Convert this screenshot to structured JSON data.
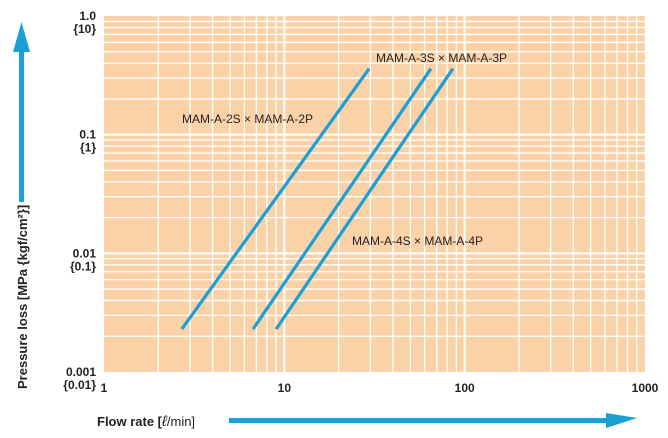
{
  "chart_data": {
    "type": "line",
    "x_scale": "log",
    "y_scale": "log",
    "xlim": [
      1,
      1000
    ],
    "ylim": [
      0.001,
      1.0
    ],
    "grid": true,
    "x_ticks": [
      "1",
      "10",
      "100",
      "1000"
    ],
    "y_ticks": [
      {
        "value": 1.0,
        "main": "1.0",
        "sub": "{10}"
      },
      {
        "value": 0.1,
        "main": "0.1",
        "sub": "{1}"
      },
      {
        "value": 0.01,
        "main": "0.01",
        "sub": "{0.1}"
      },
      {
        "value": 0.001,
        "main": "0.001",
        "sub": "{0.01}"
      }
    ],
    "xlabel": {
      "prefix": "Flow rate [",
      "unit_symbol": "ℓ",
      "unit_suffix": "/min]"
    },
    "ylabel": "Pressure loss [MPa {kgf/cm²}]",
    "series": [
      {
        "name": "MAM-A-2S × MAM-A-2P",
        "x": [
          2.7,
          29.5
        ],
        "y": [
          0.0023,
          0.36
        ]
      },
      {
        "name": "MAM-A-3S × MAM-A-3P",
        "x": [
          6.7,
          65
        ],
        "y": [
          0.0023,
          0.36
        ]
      },
      {
        "name": "MAM-A-4S × MAM-A-4P",
        "x": [
          9.0,
          86
        ],
        "y": [
          0.0023,
          0.36
        ]
      }
    ],
    "colors": {
      "background": "#fbd2a8",
      "grid": "#ffffff",
      "line": "#1aa0d6",
      "arrow": "#1aa0d6"
    }
  }
}
